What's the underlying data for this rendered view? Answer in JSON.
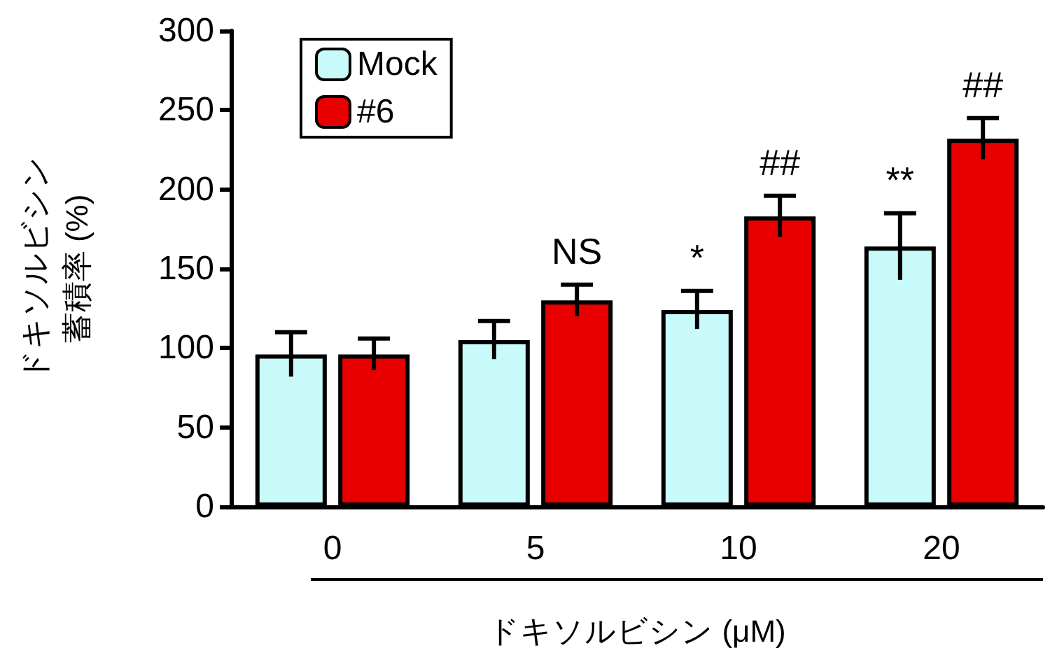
{
  "chart_data": {
    "type": "bar",
    "xlabel": "ドキソルビシン (μM)",
    "ylabel": "ドキソルビシン蓄積率 (%)",
    "categories": [
      "0",
      "5",
      "10",
      "20"
    ],
    "series": [
      {
        "name": "Mock",
        "color": "#c8fafa",
        "values": [
          96,
          105,
          124,
          164
        ],
        "errors": [
          14,
          12,
          12,
          21
        ]
      },
      {
        "name": "#6",
        "color": "#e80000",
        "values": [
          96,
          130,
          183,
          232
        ],
        "errors": [
          10,
          10,
          13,
          13
        ]
      }
    ],
    "ylim": [
      0,
      300
    ],
    "yticks": [
      0,
      50,
      100,
      150,
      200,
      250,
      300
    ],
    "grid": false,
    "legend": "top left",
    "annotations": [
      "NS",
      "*",
      "##",
      "**",
      "##"
    ]
  }
}
